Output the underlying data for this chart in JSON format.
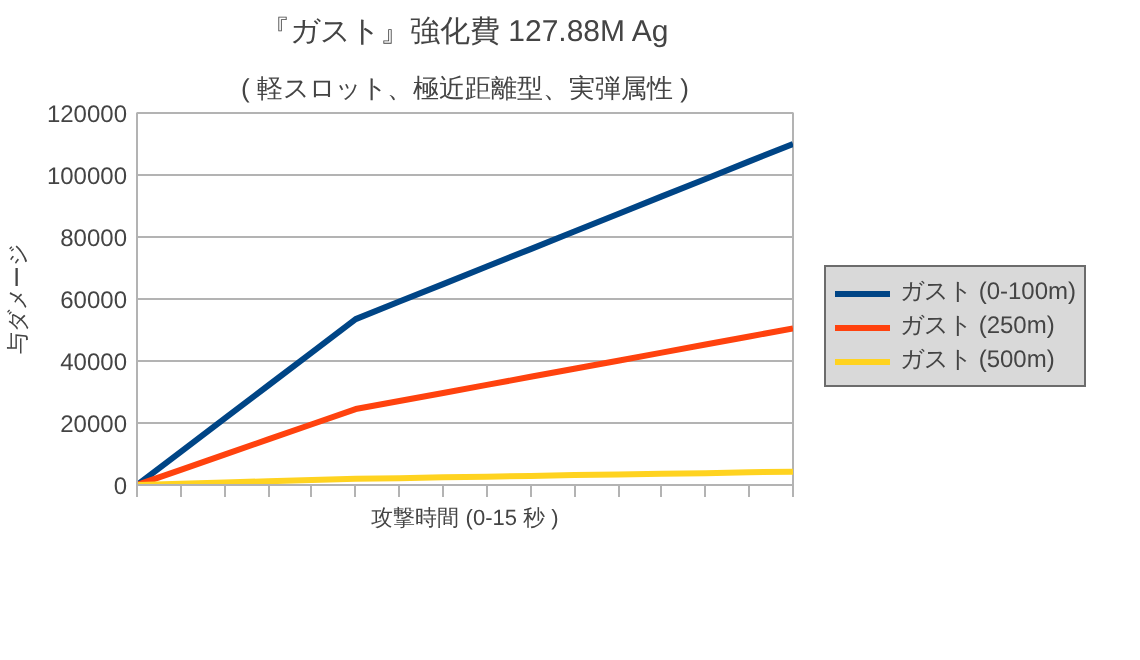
{
  "chart_data": {
    "type": "line",
    "title": "『ガスト』強化費 127.88M Ag",
    "subtitle": "( 軽スロット、極近距離型、実弾属性 )",
    "xlabel": "攻撃時間 (0-15 秒 )",
    "ylabel": "与ダメージ",
    "categories": [
      null,
      null,
      null,
      null,
      null,
      null,
      null,
      null,
      null,
      null,
      null,
      null,
      null,
      null,
      null,
      null
    ],
    "ylim": [
      0,
      120000
    ],
    "yticks": [
      0,
      20000,
      40000,
      60000,
      80000,
      100000,
      120000
    ],
    "grid": "y",
    "legend": "right",
    "marker": "none",
    "line_style": "solid",
    "series": [
      {
        "name": "ガスト (0-100m)",
        "color": "#004586",
        "values": [
          0,
          10700,
          21400,
          32100,
          42800,
          53500,
          59200,
          64800,
          70500,
          76100,
          81800,
          87400,
          93100,
          98700,
          104400,
          110000
        ]
      },
      {
        "name": "ガスト (250m)",
        "color": "#ff420e",
        "values": [
          0,
          4900,
          9800,
          14700,
          19600,
          24500,
          27100,
          29700,
          32300,
          34900,
          37500,
          40100,
          42700,
          45300,
          47900,
          50500
        ]
      },
      {
        "name": "ガスト (500m)",
        "color": "#ffd320",
        "values": [
          0,
          400,
          800,
          1200,
          1600,
          2000,
          2200,
          2500,
          2700,
          2900,
          3200,
          3400,
          3600,
          3800,
          4100,
          4300
        ]
      }
    ]
  }
}
